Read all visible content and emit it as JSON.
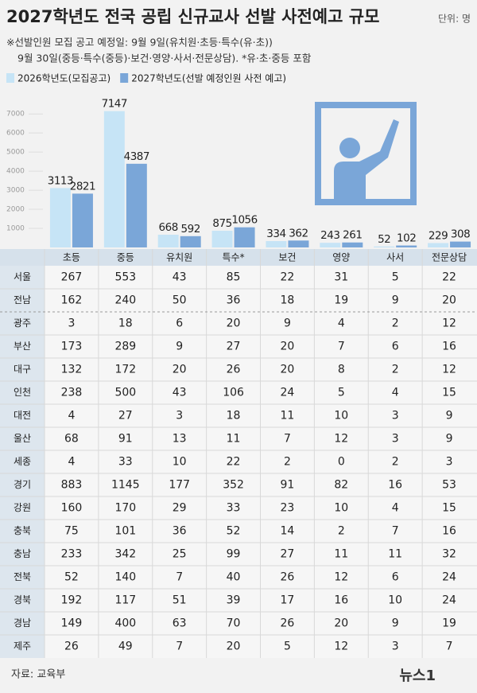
{
  "chart_data": {
    "type": "bar",
    "title": "2027학년도 전국 공립 신규교사 선발 사전예고 규모",
    "unit": "단위: 명",
    "notes": [
      "※선발인원 모집 공고 예정일: 9월 9일(유치원·초등·특수(유·초))",
      "9월 30일(중등·특수(중등)·보건·영양·사서·전문상담).  *유·초·중등 포함"
    ],
    "categories": [
      "초등",
      "중등",
      "유치원",
      "특수*",
      "보건",
      "영양",
      "사서",
      "전문상담"
    ],
    "series": [
      {
        "name": "2026학년도(모집공고)",
        "color": "#c6e4f6",
        "values": [
          3113,
          7147,
          668,
          875,
          334,
          243,
          52,
          229
        ]
      },
      {
        "name": "2027학년도(선발 예정인원 사전 예고)",
        "color": "#7aa6d8",
        "values": [
          2821,
          4387,
          592,
          1056,
          362,
          261,
          102,
          308
        ]
      }
    ],
    "ylim": [
      0,
      7300
    ],
    "yticks": [
      1000,
      2000,
      3000,
      4000,
      5000,
      6000,
      7000
    ],
    "grid": true
  },
  "table": {
    "rows": [
      [
        "서울",
        267,
        553,
        43,
        85,
        22,
        31,
        5,
        22
      ],
      [
        "전남",
        162,
        240,
        50,
        36,
        18,
        19,
        9,
        20
      ],
      [
        "광주",
        3,
        18,
        6,
        20,
        9,
        4,
        2,
        12
      ],
      [
        "부산",
        173,
        289,
        9,
        27,
        20,
        7,
        6,
        16
      ],
      [
        "대구",
        132,
        172,
        20,
        26,
        20,
        8,
        2,
        12
      ],
      [
        "인천",
        238,
        500,
        43,
        106,
        24,
        5,
        4,
        15
      ],
      [
        "대전",
        4,
        27,
        3,
        18,
        11,
        10,
        3,
        9
      ],
      [
        "울산",
        68,
        91,
        13,
        11,
        7,
        12,
        3,
        9
      ],
      [
        "세종",
        4,
        33,
        10,
        22,
        2,
        0,
        2,
        3
      ],
      [
        "경기",
        883,
        1145,
        177,
        352,
        91,
        82,
        16,
        53
      ],
      [
        "강원",
        160,
        170,
        29,
        33,
        23,
        10,
        4,
        15
      ],
      [
        "충북",
        75,
        101,
        36,
        52,
        14,
        2,
        7,
        16
      ],
      [
        "충남",
        233,
        342,
        25,
        99,
        27,
        11,
        11,
        32
      ],
      [
        "전북",
        52,
        140,
        7,
        40,
        26,
        12,
        6,
        24
      ],
      [
        "경북",
        192,
        117,
        51,
        39,
        17,
        16,
        10,
        24
      ],
      [
        "경남",
        149,
        400,
        63,
        70,
        26,
        20,
        9,
        19
      ],
      [
        "제주",
        26,
        49,
        7,
        20,
        5,
        12,
        3,
        7
      ]
    ]
  },
  "footer": {
    "source": "자료: 교육부",
    "logo": "뉴스1"
  }
}
